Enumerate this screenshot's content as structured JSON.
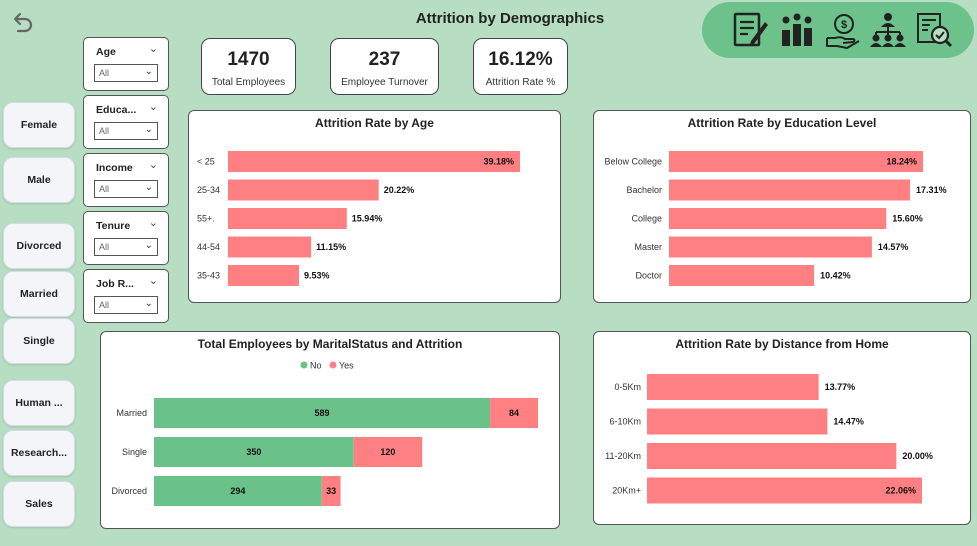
{
  "page": {
    "title": "Attrition by Demographics",
    "back_icon": "back-arrow-icon",
    "nav_icons": [
      "report-icon",
      "team-chart-icon",
      "hand-money-icon",
      "org-chart-icon",
      "analysis-icon"
    ],
    "colors": {
      "background": "#b7ddc2",
      "nav_pill": "#6cc28a",
      "bar_red": "#ff8082",
      "bar_green": "#6ac18a"
    }
  },
  "kpis": [
    {
      "value": "1470",
      "label": "Total Employees"
    },
    {
      "value": "237",
      "label": "Employee Turnover"
    },
    {
      "value": "16.12%",
      "label": "Attrition Rate %"
    }
  ],
  "slicers": [
    {
      "title": "Age",
      "value": "All"
    },
    {
      "title": "Educa...",
      "value": "All"
    },
    {
      "title": "Income",
      "value": "All"
    },
    {
      "title": "Tenure",
      "value": "All"
    },
    {
      "title": "Job R...",
      "value": "All"
    }
  ],
  "side_buttons": [
    "Female",
    "Male",
    "Divorced",
    "Married",
    "Single",
    "Human ...",
    "Research...",
    "Sales"
  ],
  "chart_data": [
    {
      "type": "bar",
      "orientation": "horizontal",
      "title": "Attrition Rate by Age",
      "categories": [
        "< 25",
        "25-34",
        "55+.",
        "44-54",
        "35-43"
      ],
      "values": [
        39.18,
        20.22,
        15.94,
        11.15,
        9.53
      ],
      "labels": [
        "39.18%",
        "20.22%",
        "15.94%",
        "11.15%",
        "9.53%"
      ],
      "color": "#ff8082"
    },
    {
      "type": "bar",
      "orientation": "horizontal",
      "title": "Attrition Rate by Education Level",
      "categories": [
        "Below College",
        "Bachelor",
        "College",
        "Master",
        "Doctor"
      ],
      "values": [
        18.24,
        17.31,
        15.6,
        14.57,
        10.42
      ],
      "labels": [
        "18.24%",
        "17.31%",
        "15.60%",
        "14.57%",
        "10.42%"
      ],
      "color": "#ff8082"
    },
    {
      "type": "bar",
      "orientation": "horizontal",
      "stacked": true,
      "title": "Total Employees by MaritalStatus and Attrition",
      "legend": [
        "No",
        "Yes"
      ],
      "categories": [
        "Married",
        "Single",
        "Divorced"
      ],
      "series": [
        {
          "name": "No",
          "values": [
            589,
            350,
            294
          ],
          "color": "#6ac18a"
        },
        {
          "name": "Yes",
          "values": [
            84,
            120,
            33
          ],
          "color": "#ff8082"
        }
      ]
    },
    {
      "type": "bar",
      "orientation": "horizontal",
      "title": "Attrition Rate by Distance from Home",
      "categories": [
        "0-5Km",
        "6-10Km",
        "11-20Km",
        "20Km+"
      ],
      "values": [
        13.77,
        14.47,
        20.0,
        22.06
      ],
      "labels": [
        "13.77%",
        "14.47%",
        "20.00%",
        "22.06%"
      ],
      "color": "#ff8082"
    }
  ]
}
